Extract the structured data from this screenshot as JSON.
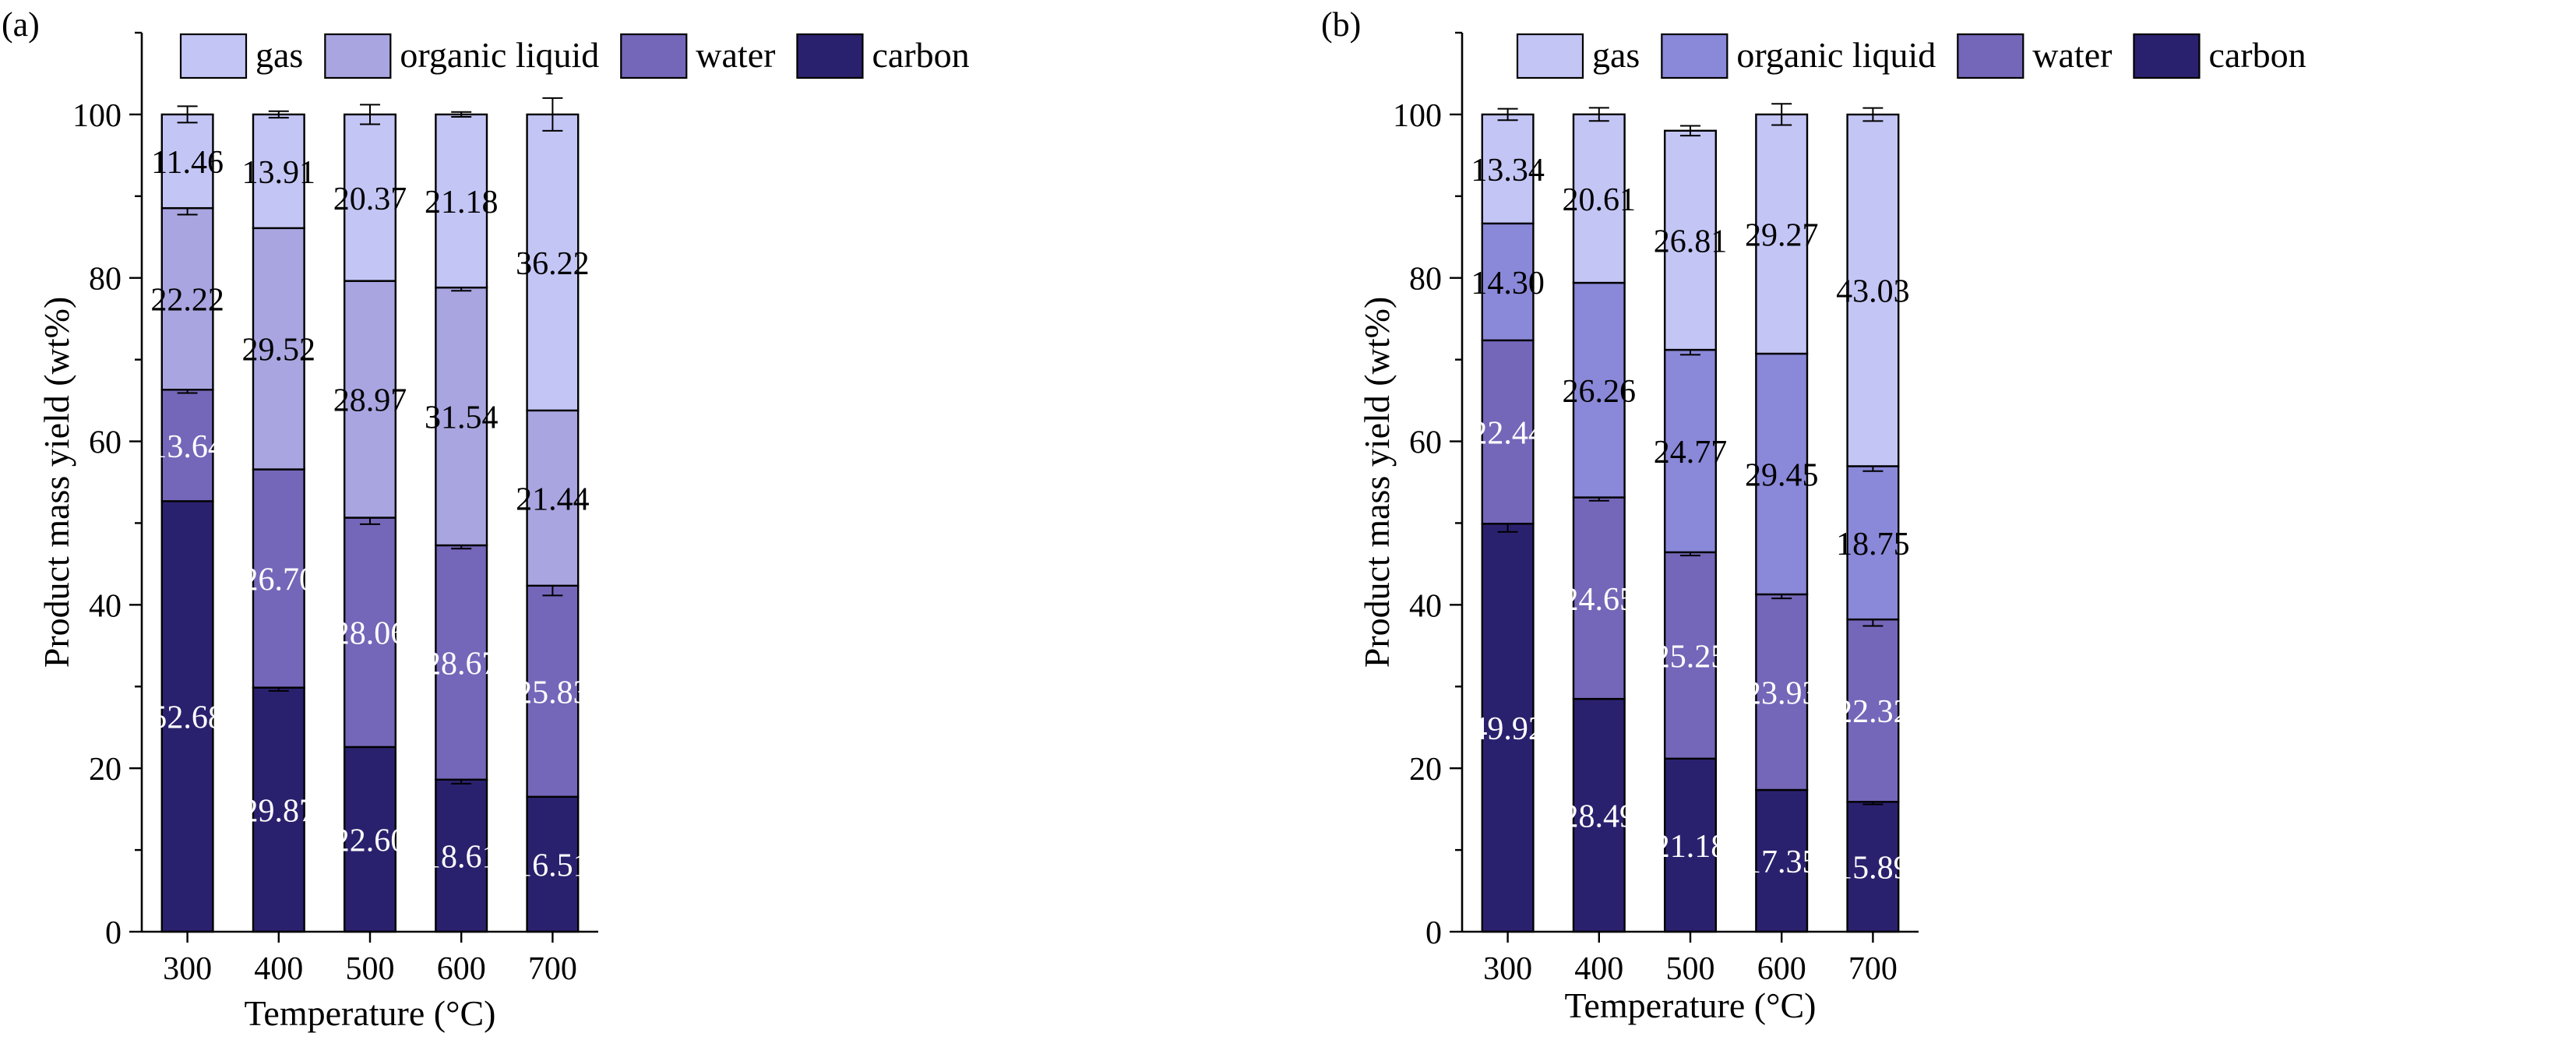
{
  "colors": {
    "a": {
      "gas": "#c3c5f5",
      "organic_liquid": "#a8a5e0",
      "water": "#7467b9",
      "carbon": "#2a216e"
    },
    "b": {
      "gas": "#c3c5f5",
      "organic_liquid": "#8a88d8",
      "water": "#7467b9",
      "carbon": "#2a216e"
    }
  },
  "chart_data": [
    {
      "type": "bar",
      "stacked": true,
      "panel_label": "(a)",
      "xlabel": "Temperature (°C)",
      "ylabel": "Product mass yield (wt%)",
      "ylim": [
        0,
        110
      ],
      "yticks": [
        0,
        20,
        40,
        60,
        80,
        100
      ],
      "categories": [
        "300",
        "400",
        "500",
        "600",
        "700"
      ],
      "legend": [
        "gas",
        "organic liquid",
        "water",
        "carbon"
      ],
      "series": [
        {
          "name": "carbon",
          "key": "carbon",
          "values": [
            52.68,
            29.87,
            22.6,
            18.61,
            16.51
          ],
          "labels": [
            "52.68",
            "29.87",
            "22.60",
            "18.61",
            "16.51"
          ],
          "errors": [
            0,
            0.4,
            0,
            0.5,
            0
          ]
        },
        {
          "name": "water",
          "key": "water",
          "values": [
            13.64,
            26.7,
            28.06,
            28.67,
            25.83
          ],
          "labels": [
            "13.64",
            "26.70",
            "28.06",
            "28.67",
            "25.83"
          ],
          "errors": [
            0.4,
            0,
            0.8,
            0.4,
            1.2
          ]
        },
        {
          "name": "organic liquid",
          "key": "organic_liquid",
          "values": [
            22.22,
            29.52,
            28.97,
            31.54,
            21.44
          ],
          "labels": [
            "22.22",
            "29.52",
            "28.97",
            "31.54",
            "21.44"
          ],
          "errors": [
            0.8,
            0,
            0,
            0.4,
            0
          ]
        },
        {
          "name": "gas",
          "key": "gas",
          "values": [
            11.46,
            13.91,
            20.37,
            21.18,
            36.22
          ],
          "labels": [
            "11.46",
            "13.91",
            "20.37",
            "21.18",
            "36.22"
          ],
          "errors": [
            1.0,
            0.4,
            1.2,
            0.3,
            2.0
          ]
        }
      ]
    },
    {
      "type": "bar",
      "stacked": true,
      "panel_label": "(b)",
      "xlabel": "Temperature (°C)",
      "ylabel": "Product mass yield (wt%)",
      "ylim": [
        0,
        110
      ],
      "yticks": [
        0,
        20,
        40,
        60,
        80,
        100
      ],
      "categories": [
        "300",
        "400",
        "500",
        "600",
        "700"
      ],
      "legend": [
        "gas",
        "organic liquid",
        "water",
        "carbon"
      ],
      "series": [
        {
          "name": "carbon",
          "key": "carbon",
          "values": [
            49.92,
            28.49,
            21.18,
            17.35,
            15.89
          ],
          "labels": [
            "49.92",
            "28.49",
            "21.18",
            "17.35",
            "15.89"
          ],
          "errors": [
            1.0,
            0,
            0,
            0,
            0.3
          ]
        },
        {
          "name": "water",
          "key": "water",
          "values": [
            22.44,
            24.65,
            25.25,
            23.93,
            22.32
          ],
          "labels": [
            "22.44",
            "24.65",
            "25.25",
            "23.93",
            "22.32"
          ],
          "errors": [
            0,
            0.4,
            0.4,
            0.5,
            0.8
          ]
        },
        {
          "name": "organic liquid",
          "key": "organic_liquid",
          "values": [
            14.3,
            26.26,
            24.77,
            29.45,
            18.75
          ],
          "labels": [
            "14.30",
            "26.26",
            "24.77",
            "29.45",
            "18.75"
          ],
          "errors": [
            0,
            0,
            0.6,
            0,
            0.6
          ]
        },
        {
          "name": "gas",
          "key": "gas",
          "values": [
            13.34,
            20.61,
            26.81,
            29.27,
            43.03
          ],
          "labels": [
            "13.34",
            "20.61",
            "26.81",
            "29.27",
            "43.03"
          ],
          "errors": [
            0.7,
            0.8,
            0.6,
            1.3,
            0.8
          ]
        }
      ]
    }
  ]
}
